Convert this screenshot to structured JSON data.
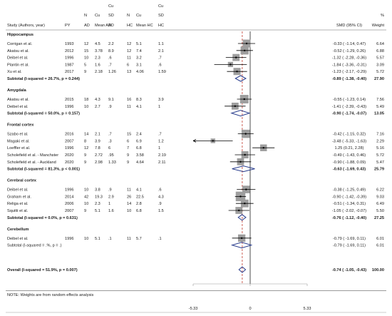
{
  "chart_data": {
    "type": "forest",
    "header": {
      "study": "Study (Authors, year)",
      "py": "PY",
      "n_ad": [
        "N",
        "AD"
      ],
      "mean_ad": [
        "Cu",
        "Mean AD"
      ],
      "sd_ad": [
        "Cu",
        "SD",
        "AD"
      ],
      "n_hc": [
        "N",
        "HC"
      ],
      "mean_hc": [
        "Cu",
        "Mean HC"
      ],
      "sd_hc": [
        "Cu",
        "SD",
        "HC"
      ],
      "smd": "SMD (95% CI)",
      "weight": [
        "%",
        "Weight"
      ]
    },
    "xlim": [
      -5.33,
      5.33
    ],
    "axis_ticks": [
      "-5.33",
      "0",
      "5.33"
    ],
    "groups": [
      {
        "name": "Hippocampus",
        "studies": [
          {
            "study": "Corrigan  et al.",
            "py": "1993",
            "n_ad": "12",
            "mean_ad": "4.5",
            "sd_ad": "2.2",
            "n_hc": "12",
            "mean_hc": "5.1",
            "sd_hc": "1.1",
            "smd": -0.33,
            "lo": -1.14,
            "hi": 0.47,
            "ci": "-0.33 ( -1.14, 0.47)",
            "weight": "6.64"
          },
          {
            "study": "Akatsu et al.",
            "py": "2012",
            "n_ad": "15",
            "mean_ad": "3.78",
            "sd_ad": "8.9",
            "n_hc": "12",
            "mean_hc": "7.4",
            "sd_hc": "2.1",
            "smd": -0.52,
            "lo": -1.29,
            "hi": 0.26,
            "ci": "-0.52 ( -1.29, 0.26)",
            "weight": "6.88"
          },
          {
            "study": "Deibel et al.",
            "py": "1996",
            "n_ad": "10",
            "mean_ad": "2.3",
            "sd_ad": ".6",
            "n_hc": "11",
            "mean_hc": "3.2",
            "sd_hc": ".7",
            "smd": -1.32,
            "lo": -2.28,
            "hi": -0.36,
            "ci": "-1.32 ( -2.28, -0.36)",
            "weight": "5.57"
          },
          {
            "study": "Plantin et al.",
            "py": "1987",
            "n_ad": "5",
            "mean_ad": "1.6",
            "sd_ad": ".7",
            "n_hc": "6",
            "mean_hc": "3.1",
            "sd_hc": ".6",
            "smd": -1.84,
            "lo": -3.36,
            "hi": -0.31,
            "ci": "-1.84 ( -3.36, -0.31)",
            "weight": "3.09"
          },
          {
            "study": "Xu et al.",
            "py": "2017",
            "n_ad": "9",
            "mean_ad": "2.18",
            "sd_ad": "1.26",
            "n_hc": "13",
            "mean_hc": "4.06",
            "sd_hc": "1.59",
            "smd": -1.23,
            "lo": -2.17,
            "hi": -0.29,
            "ci": "-1.23 ( -2.17, -0.29)",
            "weight": "5.72"
          }
        ],
        "subtotal": {
          "label": "Subtotal  (I-squared = 26.7%, p = 0.244)",
          "smd": -0.89,
          "lo": -1.38,
          "hi": -0.4,
          "ci": "-0.89 ( -1.38, -0.40)",
          "weight": "27.90"
        }
      },
      {
        "name": "Amygdala",
        "studies": [
          {
            "study": "Akatsu et al.",
            "py": "2015",
            "n_ad": "18",
            "mean_ad": "4.3",
            "sd_ad": "9.1",
            "n_hc": "16",
            "mean_hc": "8.3",
            "sd_hc": "3.9",
            "smd": -0.55,
            "lo": -1.23,
            "hi": 0.14,
            "ci": "-0.55 ( -1.23, 0.14)",
            "weight": "7.56"
          },
          {
            "study": "Deibel et al.",
            "py": "1996",
            "n_ad": "10",
            "mean_ad": "2.7",
            "sd_ad": ".9",
            "n_hc": "11",
            "mean_hc": "4.1",
            "sd_hc": "1",
            "smd": -1.41,
            "lo": -2.39,
            "hi": -0.43,
            "ci": "-1.41 ( -2.39, -0.43)",
            "weight": "5.49"
          }
        ],
        "subtotal": {
          "label": "Subtotal  (I-squared = 50.0%, p = 0.157)",
          "smd": -0.9,
          "lo": -1.74,
          "hi": -0.07,
          "ci": "-0.90 ( -1.74, -0.07)",
          "weight": "13.05"
        }
      },
      {
        "name": "Frontal cortex",
        "studies": [
          {
            "study": "Szabo et al.",
            "py": "2016",
            "n_ad": "14",
            "mean_ad": "2.1",
            "sd_ad": ".7",
            "n_hc": "15",
            "mean_hc": "2.4",
            "sd_hc": ".7",
            "smd": -0.42,
            "lo": -1.15,
            "hi": 0.32,
            "ci": "-0.42 ( -1.15, 0.32)",
            "weight": "7.16"
          },
          {
            "study": "Magaki et al.",
            "py": "2007",
            "n_ad": "8",
            "mean_ad": "3.9",
            "sd_ad": ".3",
            "n_hc": "6",
            "mean_hc": "6.9",
            "sd_hc": "1.2",
            "smd": -3.48,
            "lo": -5.33,
            "hi": -1.63,
            "ci": "-3.48 ( -5.33, -1.63)",
            "weight": "2.29",
            "arrow_left": true
          },
          {
            "study": "Loeffler et al.",
            "py": "1996",
            "n_ad": "12",
            "mean_ad": "7.8",
            "sd_ad": "6",
            "n_hc": "7",
            "mean_hc": "6.8",
            "sd_hc": "1",
            "smd": 1.25,
            "lo": 0.21,
            "hi": 2.28,
            "ci": "1.25 (0.21, 2.28)",
            "weight": "5.16"
          },
          {
            "study": "Scholefield et al. - Manchster",
            "py": "2020",
            "n_ad": "9",
            "mean_ad": "2.72",
            "sd_ad": ".95",
            "n_hc": "9",
            "mean_hc": "3.58",
            "sd_hc": "2.19",
            "smd": -0.49,
            "lo": -1.43,
            "hi": 0.46,
            "ci": "-0.49 ( -1.43, 0.46)",
            "weight": "5.72"
          },
          {
            "study": "Scholefield et al. - Auckland",
            "py": "2020",
            "n_ad": "9",
            "mean_ad": "2.98",
            "sd_ad": "1.33",
            "n_hc": "9",
            "mean_hc": "4.64",
            "sd_hc": "2.11",
            "smd": -0.9,
            "lo": -1.88,
            "hi": 0.09,
            "ci": "-0.90 ( -1.88, 0.09)",
            "weight": "5.47"
          }
        ],
        "subtotal": {
          "label": "Subtotal  (I-squared = 81.3%, p < 0.001)",
          "smd": -0.63,
          "lo": -1.69,
          "hi": 0.43,
          "ci": "-0.63 ( -1.69, 0.43)",
          "weight": "25.79"
        }
      },
      {
        "name": "Cerebral cortex",
        "studies": [
          {
            "study": "Deibel et al.",
            "py": "1996",
            "n_ad": "10",
            "mean_ad": "3.8",
            "sd_ad": ".9",
            "n_hc": "11",
            "mean_hc": "4.1",
            "sd_hc": ".6",
            "smd": -0.38,
            "lo": -1.25,
            "hi": 0.49,
            "ci": "-0.38 ( -1.25, 0.49)",
            "weight": "6.22"
          },
          {
            "study": "Graham et al.",
            "py": "2014",
            "n_ad": "42",
            "mean_ad": "19.3",
            "sd_ad": "2.9",
            "n_hc": "26",
            "mean_hc": "22.5",
            "sd_hc": "4.3",
            "smd": -0.9,
            "lo": -1.42,
            "hi": -0.39,
            "ci": "-0.90 ( -1.42, -0.39)",
            "weight": "9.03"
          },
          {
            "study": "Religa et al.",
            "py": "2006",
            "n_ad": "10",
            "mean_ad": "2.3",
            "sd_ad": "1",
            "n_hc": "14",
            "mean_hc": "2.8",
            "sd_hc": ".9",
            "smd": -0.51,
            "lo": -1.34,
            "hi": 0.31,
            "ci": "-0.51 ( -1.34, 0.31)",
            "weight": "6.49"
          },
          {
            "study": "Squitti et al.",
            "py": "2007",
            "n_ad": "9",
            "mean_ad": "5.1",
            "sd_ad": "1.6",
            "n_hc": "10",
            "mean_hc": "6.8",
            "sd_hc": "1.5",
            "smd": -1.05,
            "lo": -2.02,
            "hi": -0.07,
            "ci": "-1.05 ( -2.02, -0.07)",
            "weight": "5.50"
          }
        ],
        "subtotal": {
          "label": "Subtotal  (I-squared = 0.0%, p = 0.631)",
          "smd": -0.76,
          "lo": -1.12,
          "hi": -0.4,
          "ci": "-0.76 ( -1.12, -0.40)",
          "weight": "27.25"
        }
      },
      {
        "name": "Cerebellum",
        "studies": [
          {
            "study": "Deibel et al.",
            "py": "1996",
            "n_ad": "10",
            "mean_ad": "5.1",
            "sd_ad": ".1",
            "n_hc": "11",
            "mean_hc": "5.7",
            "sd_hc": ".1",
            "smd": -0.79,
            "lo": -1.69,
            "hi": 0.11,
            "ci": "-0.79 ( -1.69, 0.11)",
            "weight": "6.01"
          }
        ],
        "subtotal": {
          "label": "Subtotal  (I-squared = .%, p = .)",
          "smd": -0.79,
          "lo": -1.69,
          "hi": 0.11,
          "ci": "-0.79 ( -1.69, 0.11)",
          "weight": "6.01"
        }
      }
    ],
    "overall": {
      "label": "Overall  (I-squared = 51.9%, p = 0.007)",
      "smd": -0.74,
      "lo": -1.05,
      "hi": -0.43,
      "ci": "-0.74 ( -1.05, -0.43)",
      "weight": "100.00"
    }
  },
  "note": "NOTE: Weights are from random effects analysis",
  "colors": {
    "text": "#1a1a1a",
    "box": "#9e9e9e",
    "diamond": "#283c8c",
    "ref_line": "#000000",
    "overall_line": "#c0392b",
    "rule": "#9a9a9a"
  }
}
